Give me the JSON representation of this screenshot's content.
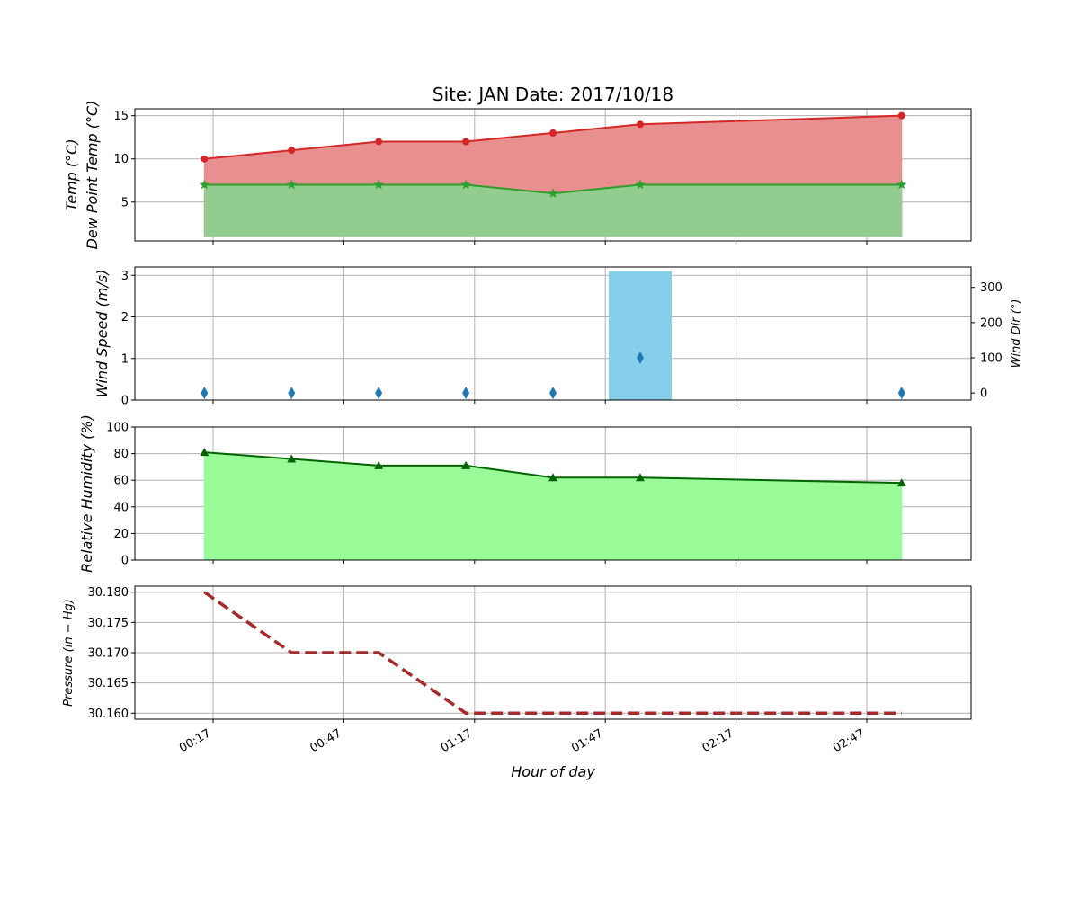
{
  "chart_data": {
    "type": "line",
    "title": "Site: JAN     Date: 2017/10/18",
    "xlabel": "$Hour\\,of\\,day$",
    "xlabel_display": "Hour of day",
    "x_ticks": [
      "00:17",
      "00:47",
      "01:17",
      "01:47",
      "02:17",
      "02:47"
    ],
    "x": [
      "00:15",
      "00:35",
      "00:55",
      "01:15",
      "01:35",
      "01:55",
      "02:55"
    ],
    "panels": [
      {
        "name": "temperature",
        "ylabel_lines": [
          "Temp (°C)",
          "Dew Point Temp (°C)"
        ],
        "ylim": [
          0.5,
          15.8
        ],
        "y_ticks": [
          5,
          10,
          15
        ],
        "fill_base": 1.0,
        "grid": true,
        "series": [
          {
            "name": "Temp",
            "color": "#d62728",
            "fill": "#e88f8f",
            "marker": "circle",
            "values": [
              10,
              11,
              12,
              12,
              13,
              14,
              15
            ]
          },
          {
            "name": "Dew Point Temp",
            "color": "#2ca02c",
            "fill": "#93cc8f",
            "marker": "star",
            "values": [
              7,
              7,
              7,
              7,
              6,
              7,
              7
            ]
          }
        ]
      },
      {
        "name": "wind",
        "ylabel": "Wind Speed (m/s)",
        "ylim": [
          0,
          3.2
        ],
        "y_ticks": [
          0,
          1,
          2,
          3
        ],
        "y2label": "Wind Dir (°)",
        "y2lim": [
          -20,
          358
        ],
        "y2_ticks": [
          0,
          100,
          200,
          300
        ],
        "grid": true,
        "series": [
          {
            "name": "Wind Speed",
            "type": "bar",
            "color": "#87ceeb",
            "values": [
              0,
              0,
              0,
              0,
              0,
              3.1,
              0
            ]
          },
          {
            "name": "Wind Dir",
            "type": "scatter",
            "color": "#1f77b4",
            "marker": "diamond",
            "axis": "right",
            "values": [
              0,
              0,
              0,
              0,
              0,
              100,
              0
            ]
          }
        ]
      },
      {
        "name": "humidity",
        "ylabel": "Relative Humidity (%)",
        "ylim": [
          0,
          100
        ],
        "y_ticks": [
          0,
          20,
          40,
          60,
          80,
          100
        ],
        "grid": true,
        "series": [
          {
            "name": "Relative Humidity",
            "color": "#006400",
            "fill": "#98fb98",
            "marker": "triangle",
            "values": [
              81,
              76,
              71,
              71,
              62,
              62,
              58
            ]
          }
        ]
      },
      {
        "name": "pressure",
        "ylabel": "Pressure (in − Hg)",
        "ylim": [
          30.159,
          30.181
        ],
        "y_ticks": [
          "30.180",
          "30.175",
          "30.170",
          "30.165",
          "30.160"
        ],
        "grid": true,
        "series": [
          {
            "name": "Pressure",
            "color": "#a52a2a",
            "line_style": "dashed",
            "values": [
              30.18,
              30.17,
              30.17,
              30.16,
              30.16,
              30.16,
              30.16
            ]
          }
        ]
      }
    ]
  }
}
